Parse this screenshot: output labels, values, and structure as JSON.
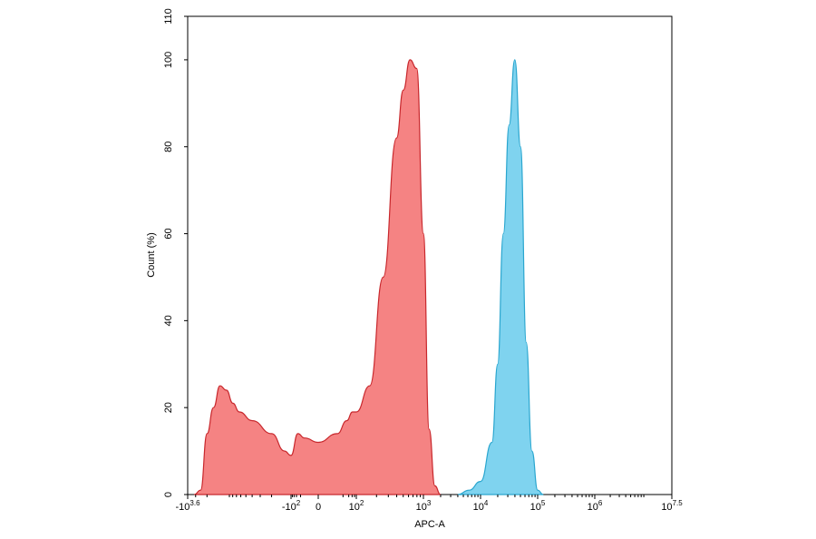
{
  "chart_data": {
    "type": "area",
    "title": "",
    "xlabel": "APC-A",
    "ylabel": "Count  (%)",
    "x_scale": "biexponential (logicle)",
    "xlim": [
      "-10^3.6",
      "10^7.5"
    ],
    "ylim": [
      0,
      110
    ],
    "grid": false,
    "legend": "none",
    "x_ticks": [
      {
        "base": "-10",
        "exp": "3.6"
      },
      {
        "base": "-10",
        "exp": "2"
      },
      {
        "base": "0",
        "exp": ""
      },
      {
        "base": "10",
        "exp": "2"
      },
      {
        "base": "10",
        "exp": "3"
      },
      {
        "base": "10",
        "exp": "4"
      },
      {
        "base": "10",
        "exp": "5"
      },
      {
        "base": "10",
        "exp": "6"
      },
      {
        "base": "10",
        "exp": "7.5"
      }
    ],
    "y_ticks": [
      "0",
      "20",
      "40",
      "60",
      "80",
      "100",
      "110"
    ],
    "series": [
      {
        "color": "#f58383",
        "stroke": "#c8282d",
        "points": [
          [
            "-10^3.5",
            0
          ],
          [
            "-10^3.4",
            1
          ],
          [
            "-10^3.3",
            14
          ],
          [
            "-10^3.2",
            20
          ],
          [
            "-10^3.1",
            25
          ],
          [
            "-10^3.0",
            24
          ],
          [
            "-10^2.9",
            21
          ],
          [
            "-10^2.8",
            19
          ],
          [
            "-10^2.6",
            17
          ],
          [
            "-10^2.3",
            14
          ],
          [
            "-10^2.1",
            10
          ],
          [
            "-10^2",
            9
          ],
          [
            "-10^1.5",
            14
          ],
          [
            "-10^1",
            13
          ],
          [
            "0",
            12
          ],
          [
            "10^1",
            14
          ],
          [
            "10^1.5",
            17
          ],
          [
            "10^1.8",
            19
          ],
          [
            "10^2",
            19
          ],
          [
            "10^2.2",
            25
          ],
          [
            "10^2.4",
            50
          ],
          [
            "10^2.6",
            82
          ],
          [
            "10^2.7",
            93
          ],
          [
            "10^2.8",
            100
          ],
          [
            "10^2.9",
            98
          ],
          [
            "10^3",
            60
          ],
          [
            "10^3.1",
            15
          ],
          [
            "10^3.2",
            2
          ],
          [
            "10^3.3",
            0
          ]
        ]
      },
      {
        "color": "#7fd3ef",
        "stroke": "#2aa6cf",
        "points": [
          [
            "10^3.6",
            0
          ],
          [
            "10^3.8",
            1
          ],
          [
            "10^4",
            3
          ],
          [
            "10^4.2",
            12
          ],
          [
            "10^4.3",
            30
          ],
          [
            "10^4.4",
            60
          ],
          [
            "10^4.5",
            85
          ],
          [
            "10^4.6",
            100
          ],
          [
            "10^4.7",
            80
          ],
          [
            "10^4.8",
            35
          ],
          [
            "10^4.9",
            10
          ],
          [
            "10^5",
            1
          ],
          [
            "10^5.1",
            0
          ]
        ]
      }
    ]
  }
}
